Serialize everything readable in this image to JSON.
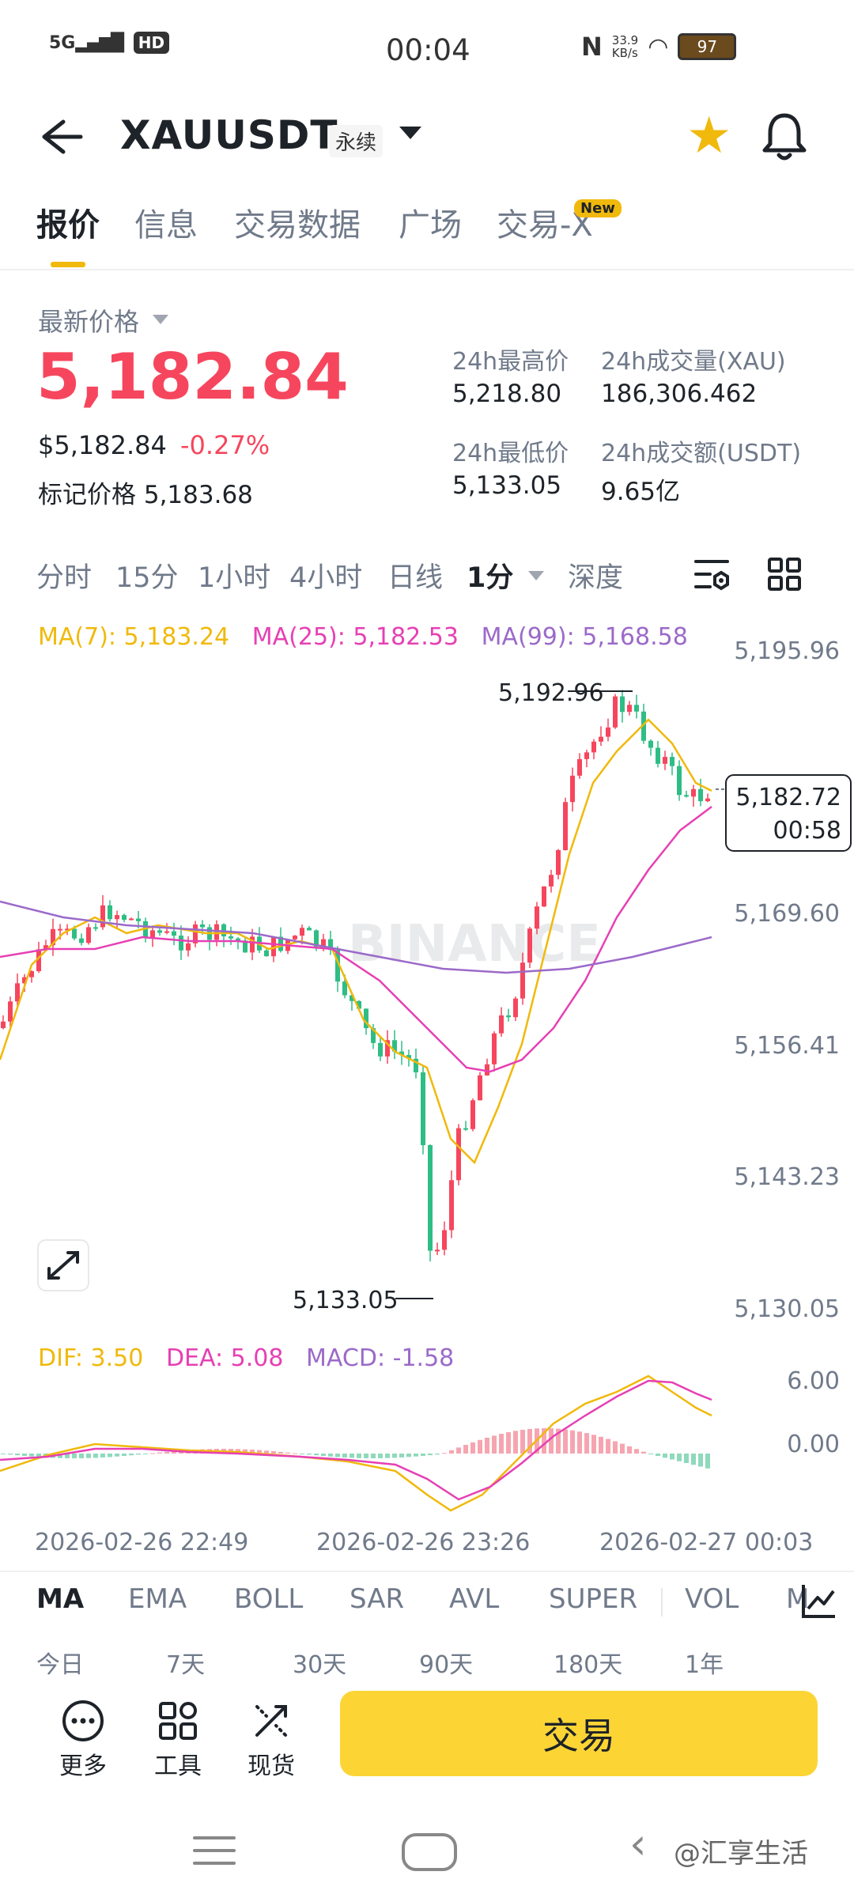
{
  "status": {
    "network": "5G",
    "hd": "HD",
    "time": "00:04",
    "speed": "33.9\nKB/s",
    "battery": "97"
  },
  "header": {
    "symbol": "XAUUSDT",
    "contract": "永续"
  },
  "tabs": [
    {
      "label": "报价",
      "active": true
    },
    {
      "label": "信息"
    },
    {
      "label": "交易数据"
    },
    {
      "label": "广场"
    },
    {
      "label": "交易-X"
    }
  ],
  "new_badge": "New",
  "price": {
    "latest_label": "最新价格",
    "last": "5,182.84",
    "usd": "$5,182.84",
    "change_pct": "-0.27%",
    "mark_label": "标记价格",
    "mark": "5,183.68"
  },
  "stats": {
    "high_label": "24h最高价",
    "high": "5,218.80",
    "vol_label": "24h成交量(XAU)",
    "vol": "186,306.462",
    "low_label": "24h最低价",
    "low": "5,133.05",
    "turnover_label": "24h成交额(USDT)",
    "turnover": "9.65亿"
  },
  "intervals": [
    "分时",
    "15分",
    "1小时",
    "4小时",
    "日线",
    "1分",
    "深度"
  ],
  "ma_legend": {
    "ma7": "MA(7): 5,183.24",
    "ma25": "MA(25): 5,182.53",
    "ma99": "MA(99): 5,168.58"
  },
  "macd_legend": {
    "dif": "DIF: 3.50",
    "dea": "DEA: 5.08",
    "macd": "MACD: -1.58"
  },
  "colors": {
    "up": "#f6465d",
    "down": "#2ebd85",
    "ma7": "#f0b90b",
    "ma25": "#e640b4",
    "ma99": "#9b6ac9",
    "accent": "#fcd535"
  },
  "chart_data": {
    "type": "candlestick",
    "y_ticks": [
      "5,195.96",
      "5,169.60",
      "5,156.41",
      "5,143.23",
      "5,130.05"
    ],
    "ylim": [
      5130.05,
      5195.96
    ],
    "high_marker": "5,192.96",
    "low_marker": "5,133.05",
    "current_price": "5,182.72",
    "countdown": "00:58",
    "macd_ticks": [
      "6.00",
      "0.00"
    ],
    "x_labels": [
      "2026-02-26 22:49",
      "2026-02-26 23:26",
      "2026-02-27 00:03"
    ],
    "watermark": "BINANCE"
  },
  "indicators": [
    "MA",
    "EMA",
    "BOLL",
    "SAR",
    "AVL",
    "SUPER",
    "VOL",
    "M"
  ],
  "periods": [
    "今日",
    "7天",
    "30天",
    "90天",
    "180天",
    "1年"
  ],
  "actions": {
    "more": "更多",
    "tools": "工具",
    "spot": "现货",
    "trade": "交易"
  },
  "nav_watermark": "@汇享生活"
}
